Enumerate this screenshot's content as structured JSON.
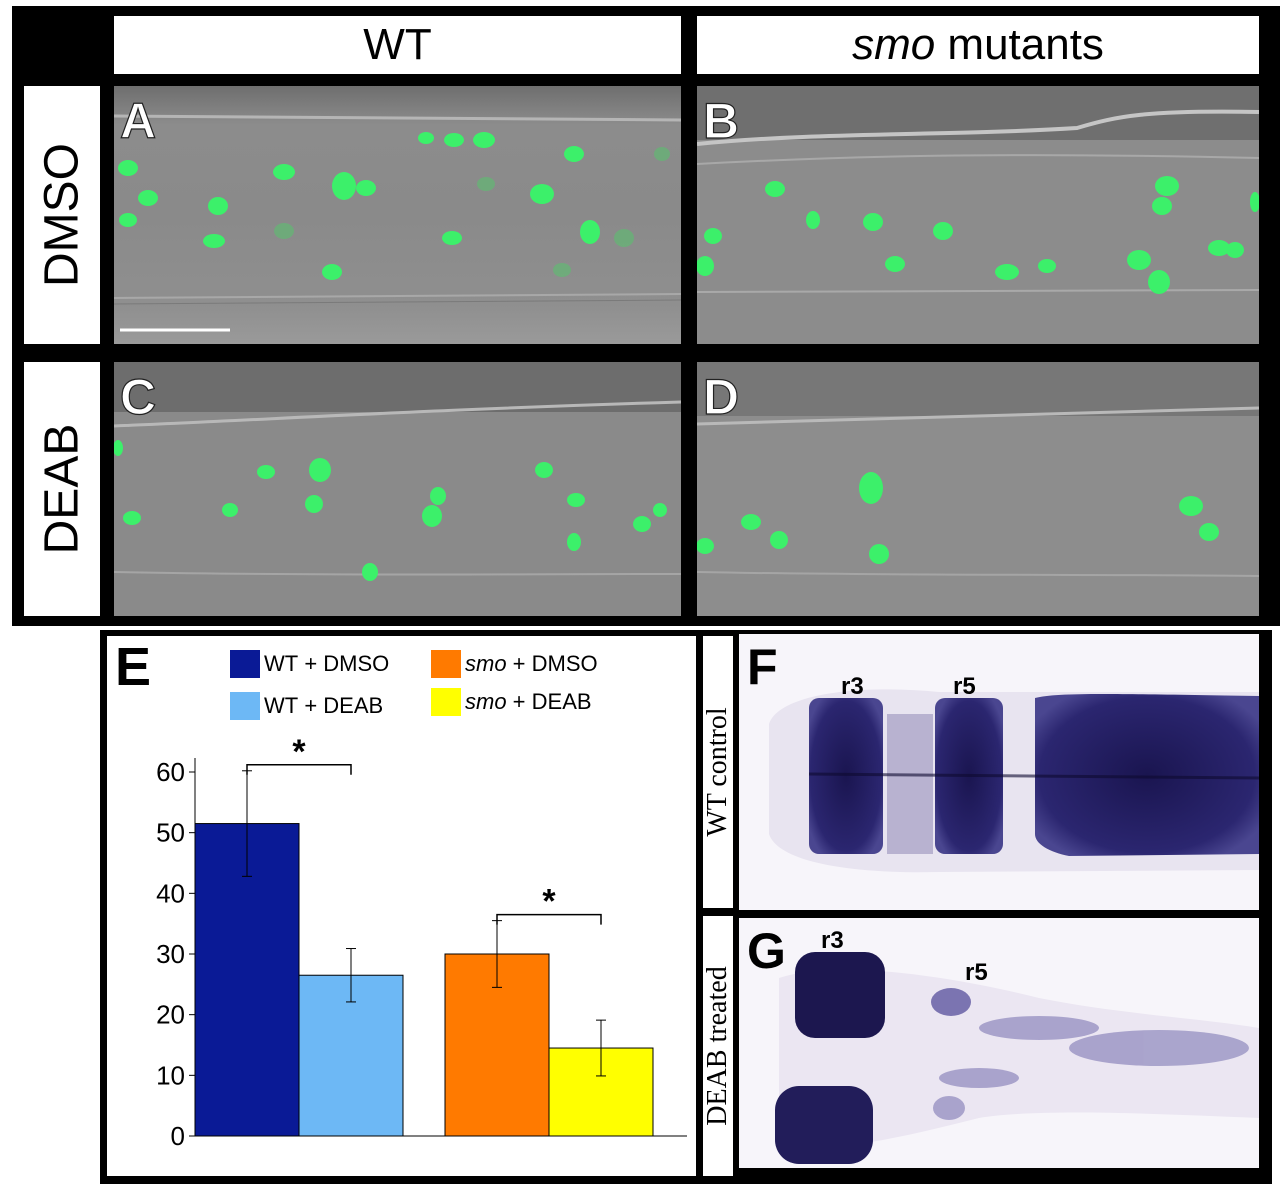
{
  "columns": {
    "wt": "WT",
    "smo_italic": "smo",
    "smo_rest": " mutants"
  },
  "rows": {
    "dmso": "DMSO",
    "deab": "DEAB"
  },
  "panels": {
    "A": "A",
    "B": "B",
    "C": "C",
    "D": "D",
    "E": "E",
    "F": "F",
    "G": "G"
  },
  "legend": [
    {
      "prefix": "WT",
      "suffix": " + DMSO",
      "italic": false,
      "color": "#0a1a96"
    },
    {
      "prefix": "WT",
      "suffix": " + DEAB",
      "italic": false,
      "color": "#6db8f5"
    },
    {
      "prefix": "smo",
      "suffix": " + DMSO",
      "italic": true,
      "color": "#ff7a00"
    },
    {
      "prefix": "smo",
      "suffix": " + DEAB",
      "italic": true,
      "color": "#ffff00"
    }
  ],
  "chart_data": {
    "type": "bar",
    "title": "",
    "xlabel": "",
    "ylabel": "",
    "ylim": [
      0,
      60
    ],
    "yticks": [
      "0",
      "10",
      "20",
      "30",
      "40",
      "50",
      "60"
    ],
    "groups": [
      "WT",
      "smo"
    ],
    "series": [
      {
        "name": "WT + DMSO",
        "value": 51.5,
        "err": 8.7,
        "color": "#0a1a96"
      },
      {
        "name": "WT + DEAB",
        "value": 26.5,
        "err": 4.4,
        "color": "#6db8f5"
      },
      {
        "name": "smo + DMSO",
        "value": 30,
        "err": 5.5,
        "color": "#ff7a00"
      },
      {
        "name": "smo + DEAB",
        "value": 14.5,
        "err": 4.6,
        "color": "#ffff00"
      }
    ],
    "significance": [
      {
        "between": [
          0,
          1
        ],
        "label": "*"
      },
      {
        "between": [
          2,
          3
        ],
        "label": "*"
      }
    ],
    "grid": false
  },
  "ish": {
    "F_label": "WT control",
    "G_label": "DEAB treated",
    "r3": "r3",
    "r5": "r5"
  }
}
